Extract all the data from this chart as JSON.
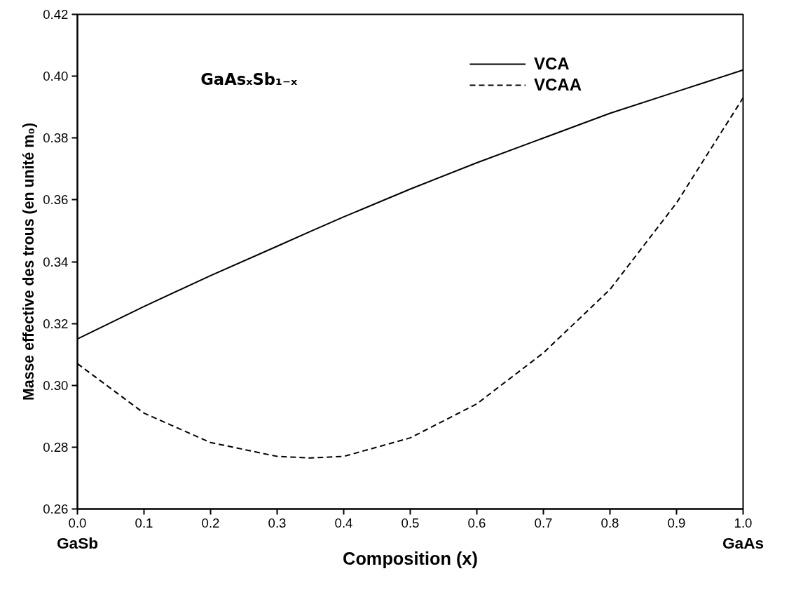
{
  "chart_data": {
    "type": "line",
    "xlabel": "Composition (x)",
    "ylabel": "Masse effective des trous (en unité m₀)",
    "annotations": [
      "GaAsₓSb₁₋ₓ",
      "GaSb",
      "GaAs"
    ],
    "x": [
      0,
      0.1,
      0.2,
      0.3,
      0.35,
      0.4,
      0.5,
      0.6,
      0.7,
      0.8,
      0.9,
      1.0
    ],
    "series": [
      {
        "name": "VCA",
        "color": "#000000",
        "line_style": "solid",
        "values": [
          0.315,
          0.3255,
          0.3355,
          0.345,
          0.3498,
          0.3545,
          0.3635,
          0.372,
          0.38,
          0.388,
          0.395,
          0.402
        ]
      },
      {
        "name": "VCAA",
        "color": "#000000",
        "line_style": "dashed",
        "values": [
          0.307,
          0.291,
          0.2815,
          0.277,
          0.2765,
          0.277,
          0.283,
          0.294,
          0.3105,
          0.331,
          0.359,
          0.393
        ]
      }
    ],
    "xlim": [
      0,
      1.0
    ],
    "ylim": [
      0.26,
      0.42
    ],
    "xticks": [
      {
        "value": 0,
        "label": "0.0"
      },
      0.1,
      0.2,
      0.3,
      0.4,
      0.5,
      0.6,
      0.7,
      0.8,
      0.9,
      {
        "value": 1.0,
        "label": "1.0"
      }
    ],
    "yticks": [
      0.26,
      0.28,
      {
        "value": 0.3,
        "label": "0.30"
      },
      0.32,
      0.34,
      0.36,
      0.38,
      {
        "value": 0.4,
        "label": "0.40"
      },
      0.42
    ],
    "grid": false,
    "legend": "top right",
    "marker": "none"
  }
}
